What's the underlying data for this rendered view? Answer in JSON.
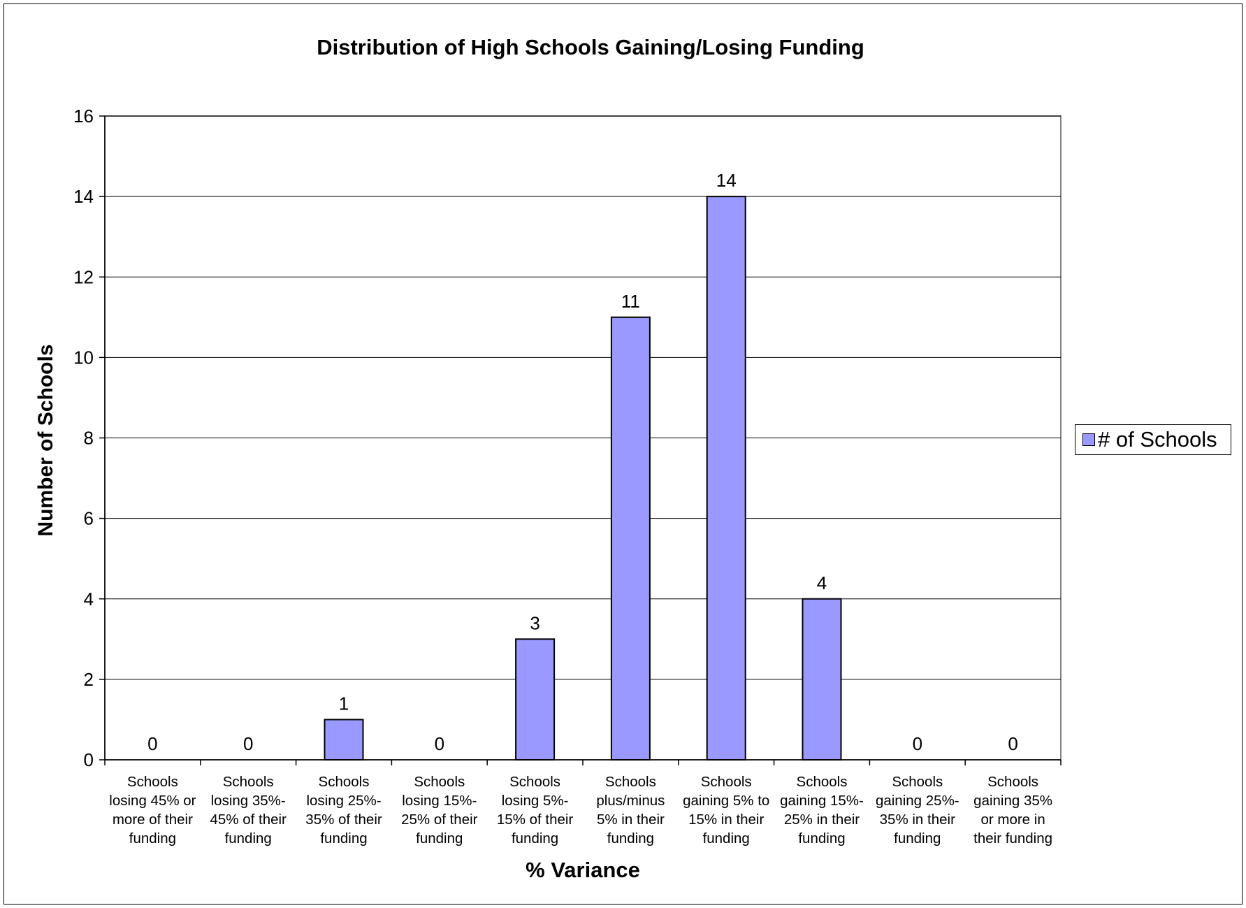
{
  "chart_data": {
    "type": "bar",
    "title": "Distribution of High Schools Gaining/Losing Funding",
    "xlabel": "% Variance",
    "ylabel": "Number of Schools",
    "ylim": [
      0,
      16
    ],
    "yticks": [
      0,
      2,
      4,
      6,
      8,
      10,
      12,
      14,
      16
    ],
    "grid": true,
    "legend_position": "right",
    "categories": [
      [
        "Schools",
        "losing 45% or",
        "more of their",
        "funding"
      ],
      [
        "Schools",
        "losing 35%-",
        "45% of their",
        "funding"
      ],
      [
        "Schools",
        "losing 25%-",
        "35% of their",
        "funding"
      ],
      [
        "Schools",
        "losing 15%-",
        "25% of their",
        "funding"
      ],
      [
        "Schools",
        "losing 5%-",
        "15% of their",
        "funding"
      ],
      [
        "Schools",
        "plus/minus",
        "5% in their",
        "funding"
      ],
      [
        "Schools",
        "gaining 5% to",
        "15% in their",
        "funding"
      ],
      [
        "Schools",
        "gaining 15%-",
        "25% in their",
        "funding"
      ],
      [
        "Schools",
        "gaining 25%-",
        "35% in their",
        "funding"
      ],
      [
        "Schools",
        "gaining 35%",
        "or more in",
        "their funding"
      ]
    ],
    "series": [
      {
        "name": "# of Schools",
        "values": [
          0,
          0,
          1,
          0,
          3,
          11,
          14,
          4,
          0,
          0
        ],
        "color": "#9999ff"
      }
    ]
  }
}
